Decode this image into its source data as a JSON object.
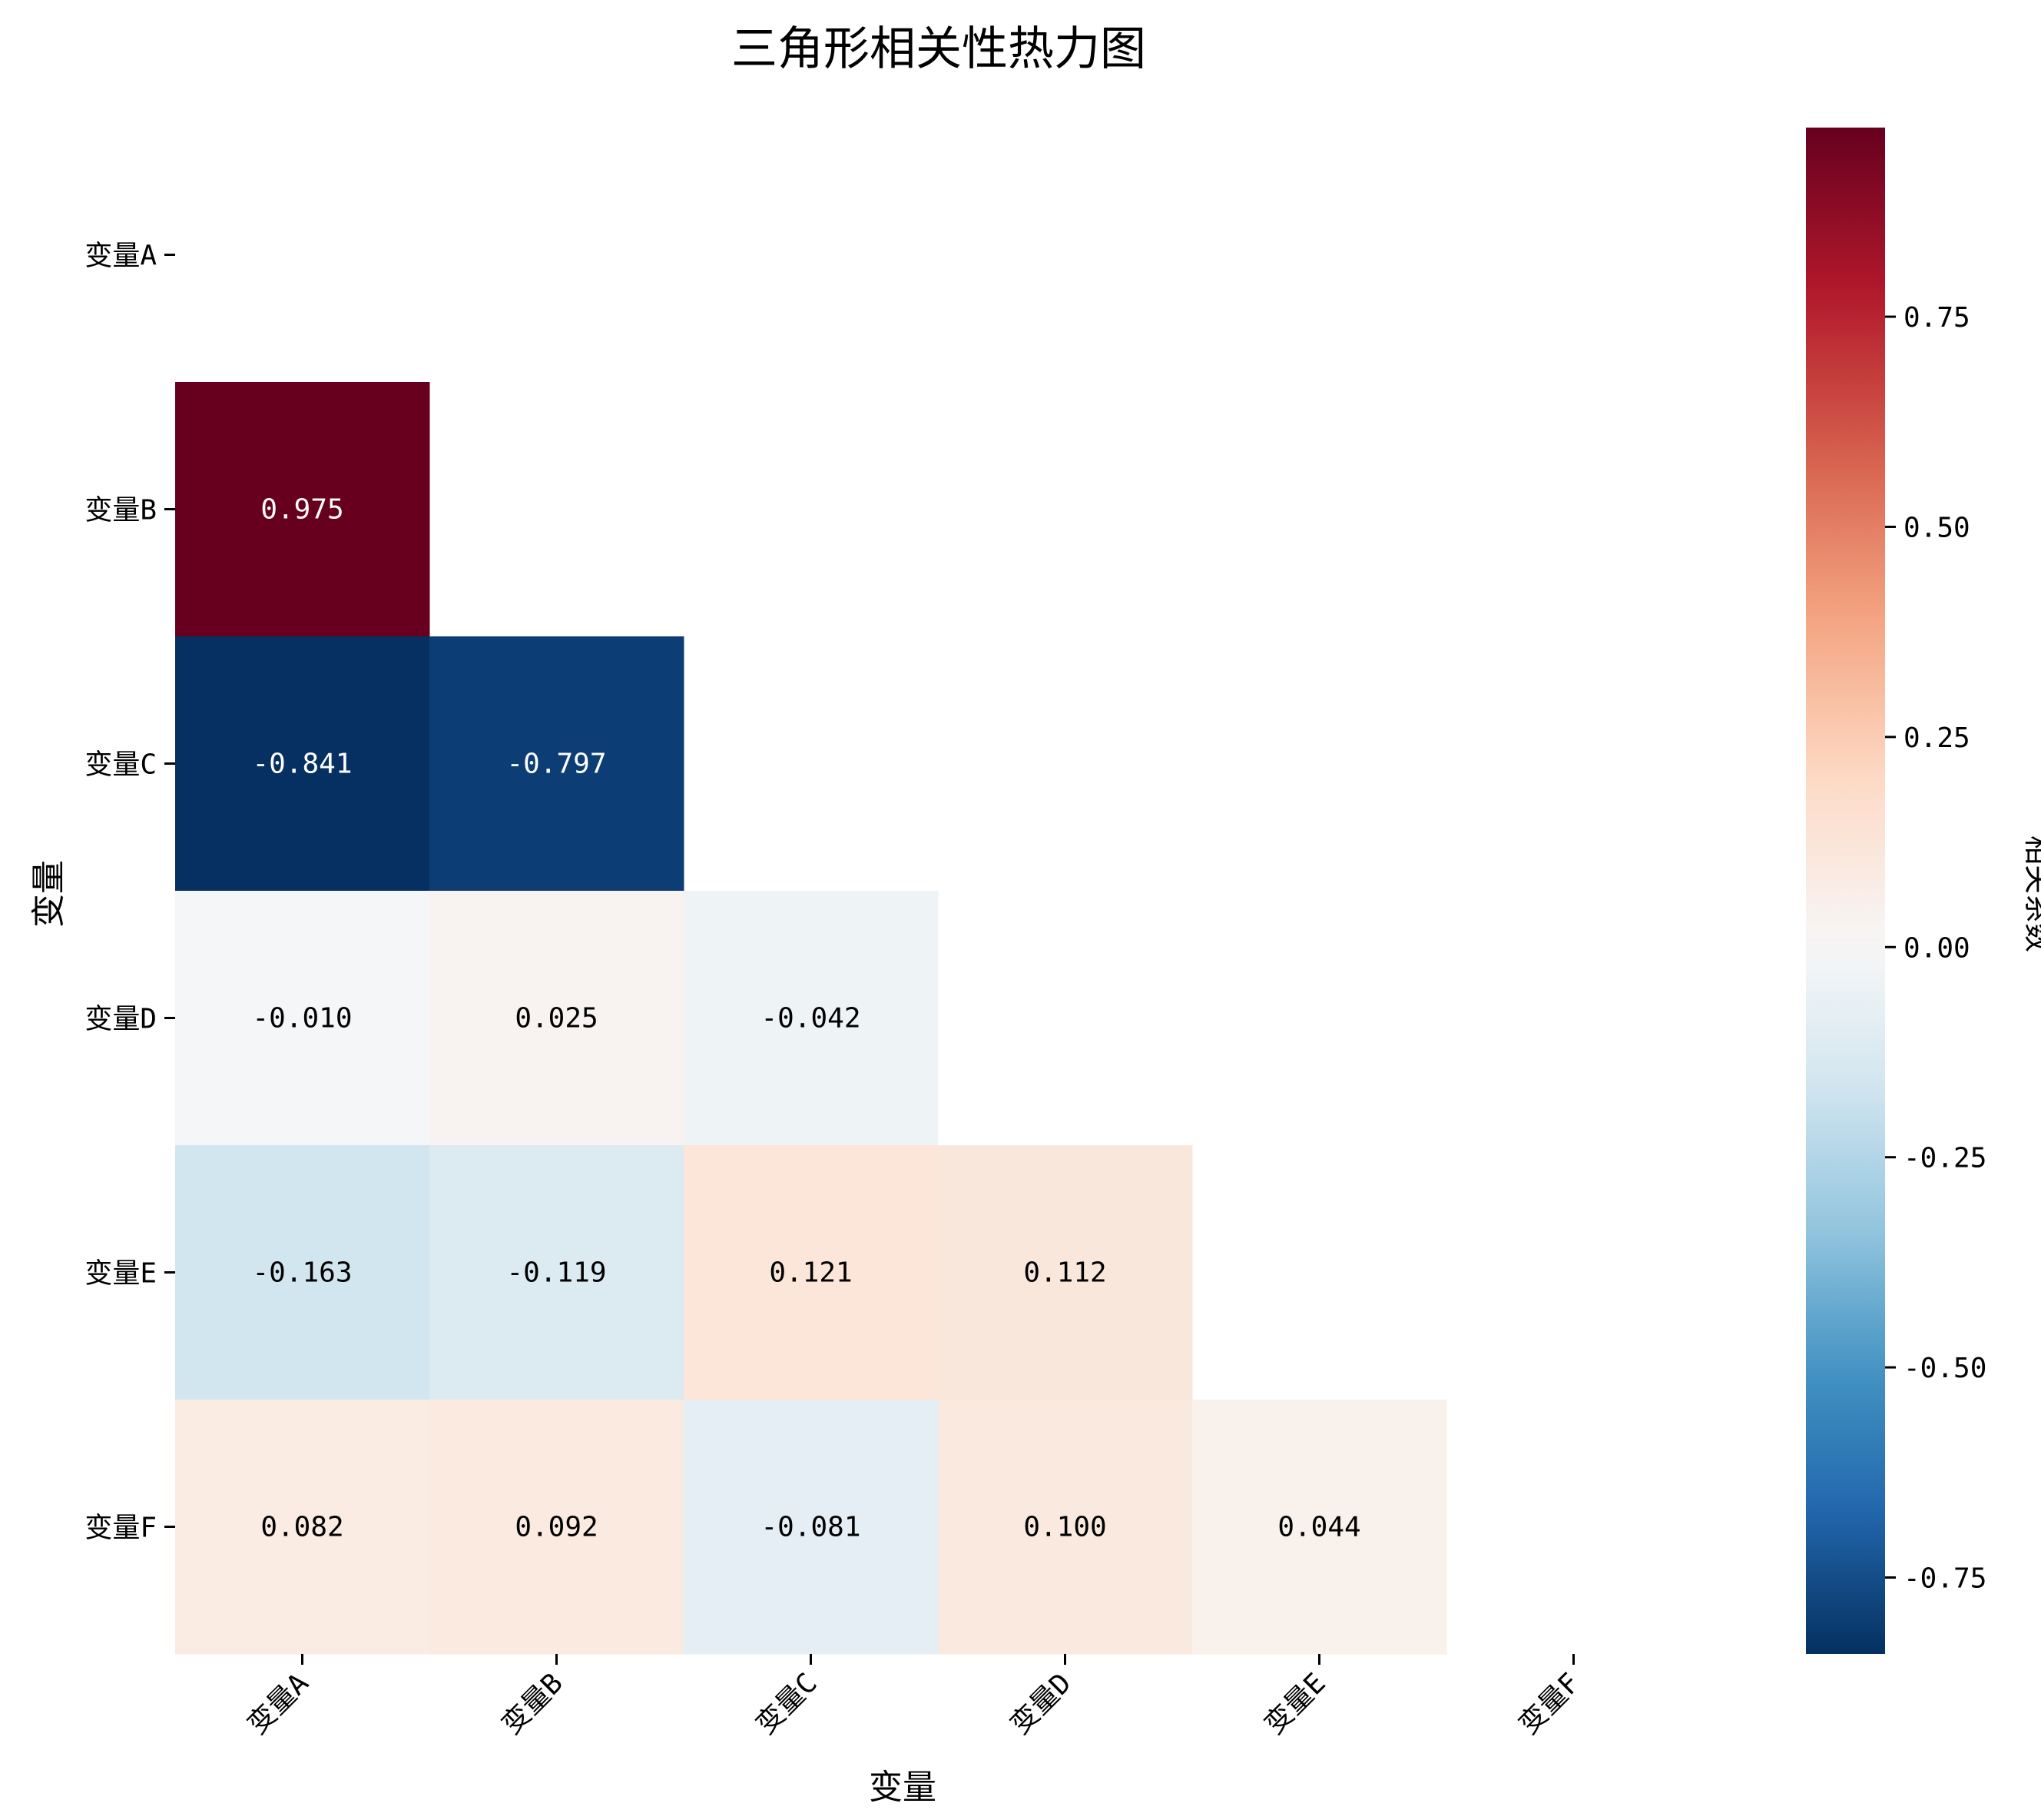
{
  "chart_data": {
    "type": "heatmap",
    "title": "三角形相关性热力图",
    "xlabel": "变量",
    "ylabel": "变量",
    "colorbar_label": "相关系数",
    "colormap": "RdBu_r",
    "mask": "upper-triangle-including-diagonal",
    "annotation_format": "0.000",
    "x_categories": [
      "变量A",
      "变量B",
      "变量C",
      "变量D",
      "变量E",
      "变量F"
    ],
    "y_categories": [
      "变量A",
      "变量B",
      "变量C",
      "变量D",
      "变量E",
      "变量F"
    ],
    "cells": [
      {
        "row": "变量B",
        "col": "变量A",
        "value": 0.975,
        "label": "0.975"
      },
      {
        "row": "变量C",
        "col": "变量A",
        "value": -0.841,
        "label": "-0.841"
      },
      {
        "row": "变量C",
        "col": "变量B",
        "value": -0.797,
        "label": "-0.797"
      },
      {
        "row": "变量D",
        "col": "变量A",
        "value": -0.01,
        "label": "-0.010"
      },
      {
        "row": "变量D",
        "col": "变量B",
        "value": 0.025,
        "label": "0.025"
      },
      {
        "row": "变量D",
        "col": "变量C",
        "value": -0.042,
        "label": "-0.042"
      },
      {
        "row": "变量E",
        "col": "变量A",
        "value": -0.163,
        "label": "-0.163"
      },
      {
        "row": "变量E",
        "col": "变量B",
        "value": -0.119,
        "label": "-0.119"
      },
      {
        "row": "变量E",
        "col": "变量C",
        "value": 0.121,
        "label": "0.121"
      },
      {
        "row": "变量E",
        "col": "变量D",
        "value": 0.112,
        "label": "0.112"
      },
      {
        "row": "变量F",
        "col": "变量A",
        "value": 0.082,
        "label": "0.082"
      },
      {
        "row": "变量F",
        "col": "变量B",
        "value": 0.092,
        "label": "0.092"
      },
      {
        "row": "变量F",
        "col": "变量C",
        "value": -0.081,
        "label": "-0.081"
      },
      {
        "row": "变量F",
        "col": "变量D",
        "value": 0.1,
        "label": "0.100"
      },
      {
        "row": "变量F",
        "col": "变量E",
        "value": 0.044,
        "label": "0.044"
      }
    ],
    "color_range": [
      -0.841,
      0.975
    ],
    "colorbar_ticks": [
      {
        "value": 0.75,
        "label": "0.75"
      },
      {
        "value": 0.5,
        "label": "0.50"
      },
      {
        "value": 0.25,
        "label": "0.25"
      },
      {
        "value": 0.0,
        "label": "0.00"
      },
      {
        "value": -0.25,
        "label": "-0.25"
      },
      {
        "value": -0.5,
        "label": "-0.50"
      },
      {
        "value": -0.75,
        "label": "-0.75"
      }
    ],
    "grid": false
  }
}
